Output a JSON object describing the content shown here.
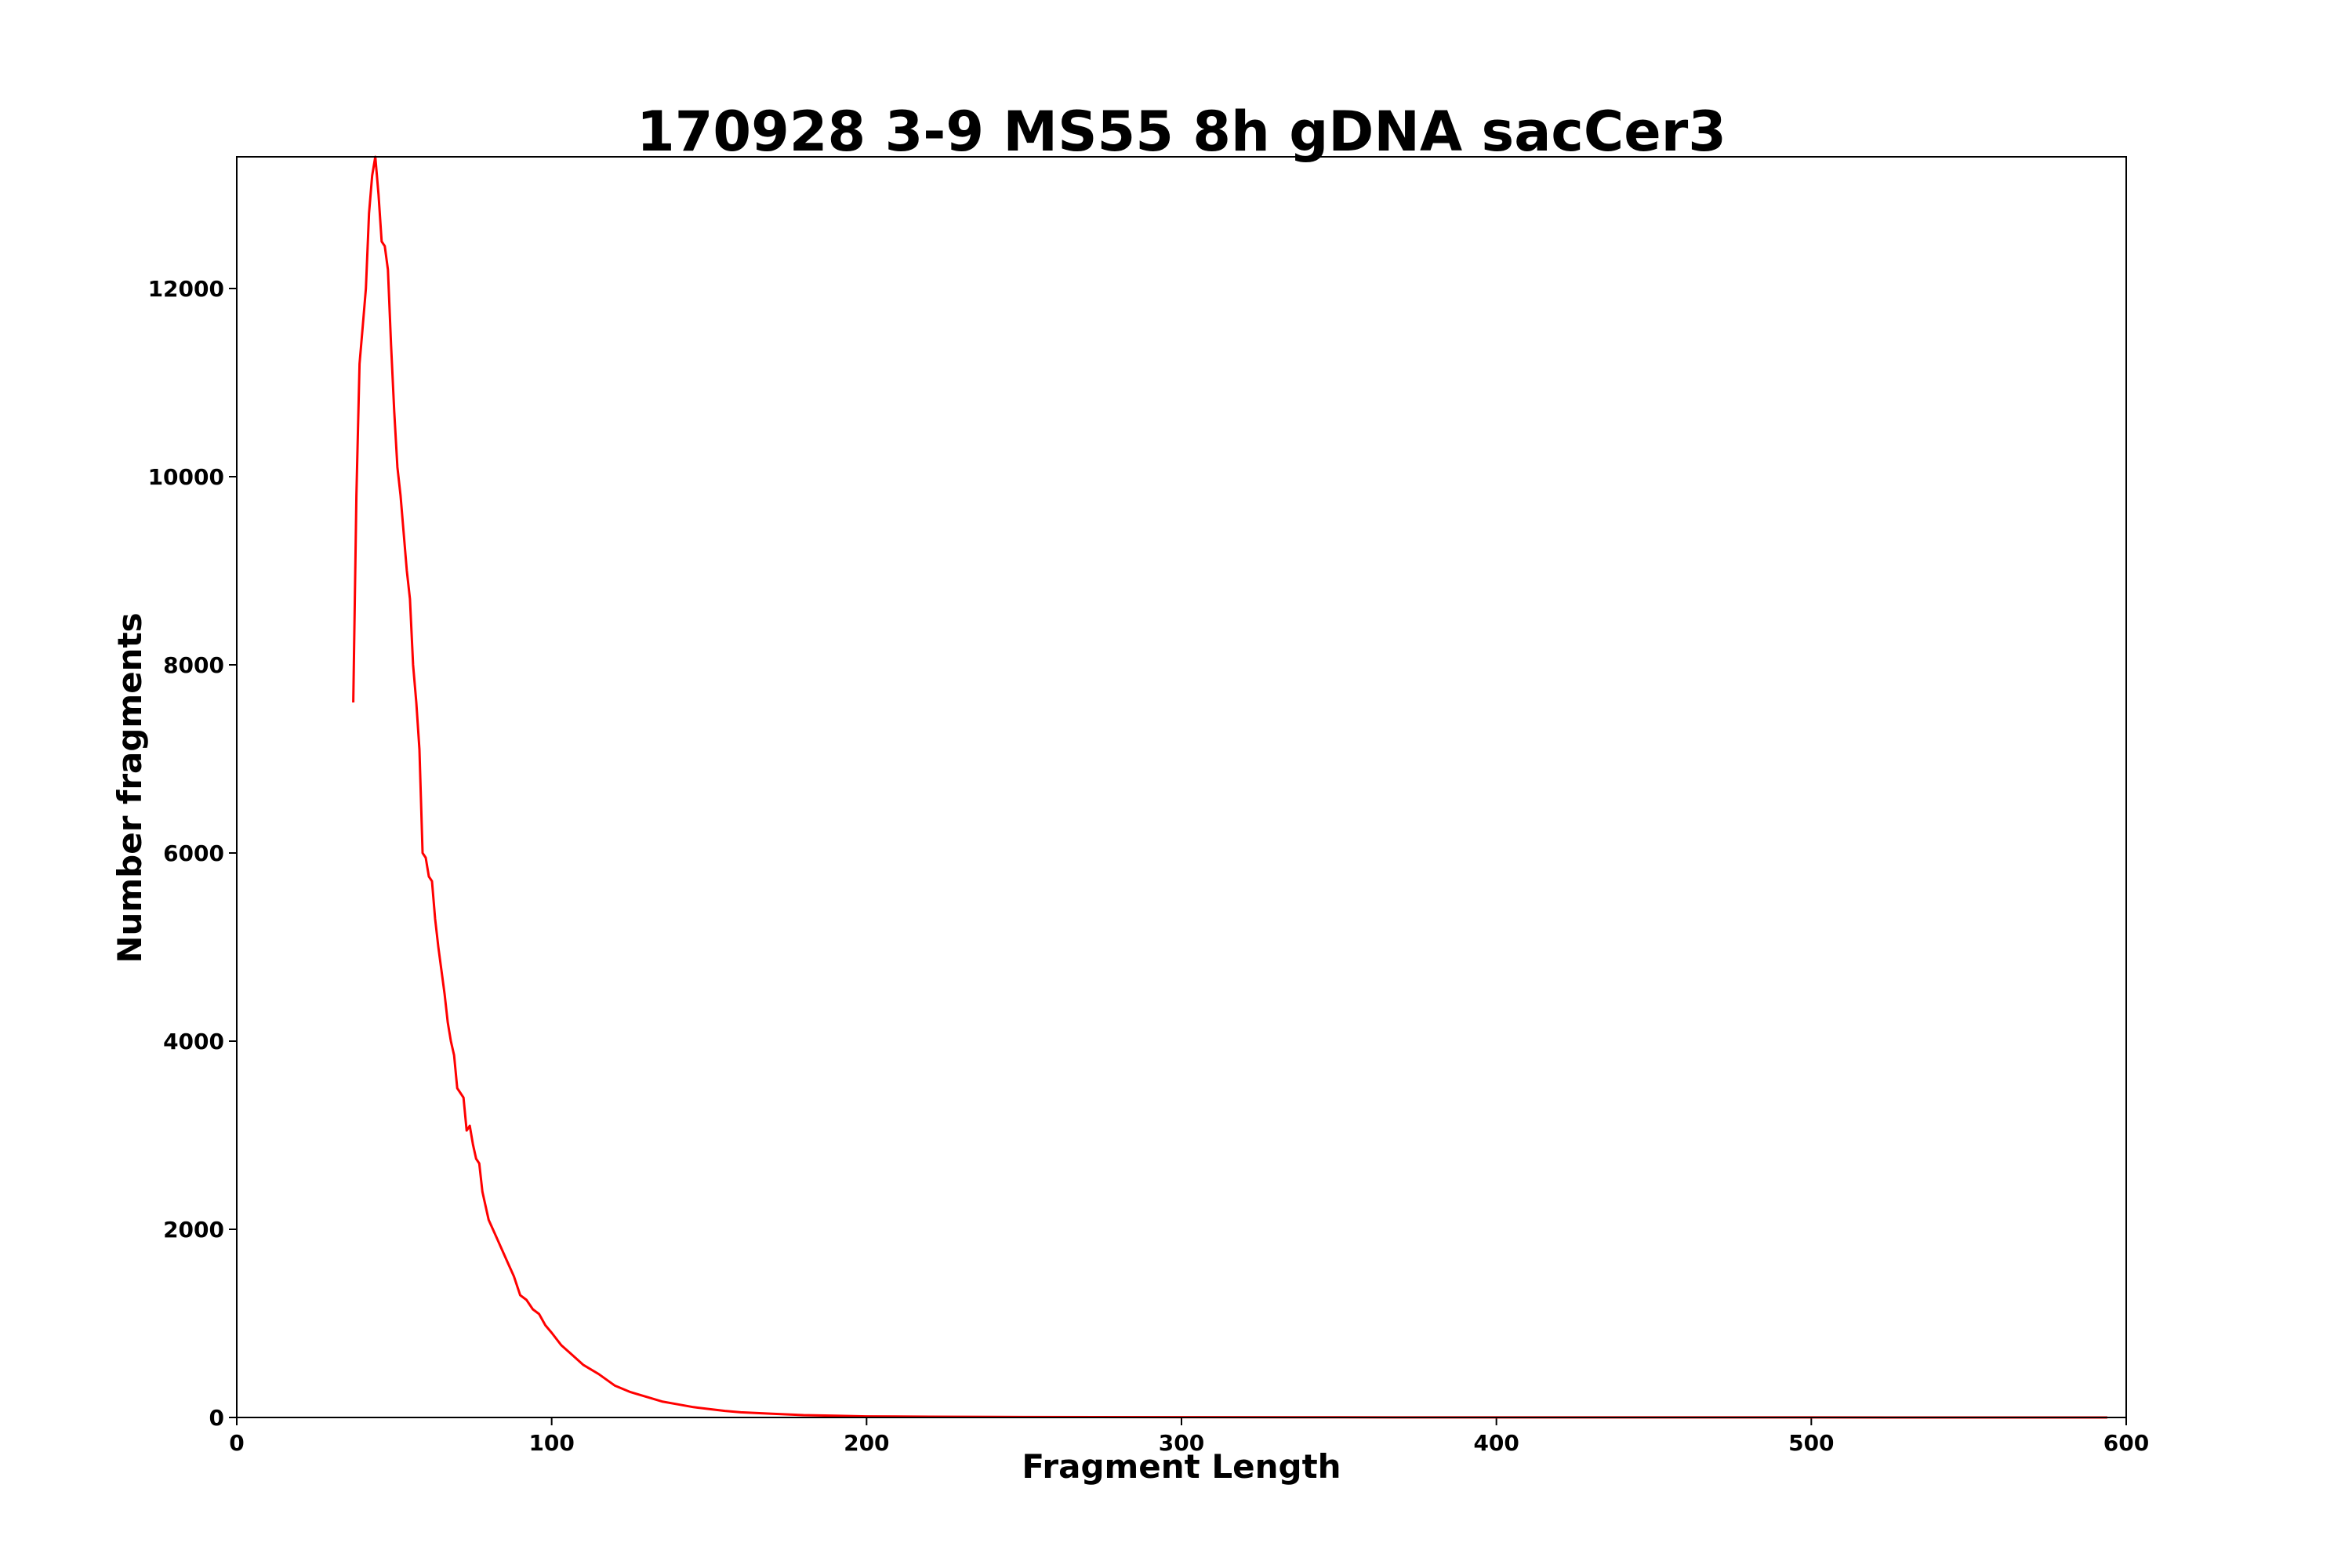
{
  "chart_data": {
    "type": "line",
    "title": "170928 3-9 MS55 8h gDNA sacCer3",
    "xlabel": "Fragment Length",
    "ylabel": "Number fragments",
    "xlim": [
      0,
      600
    ],
    "ylim": [
      0,
      13400
    ],
    "xticks": [
      0,
      100,
      200,
      300,
      400,
      500,
      600
    ],
    "yticks": [
      0,
      2000,
      4000,
      6000,
      8000,
      10000,
      12000
    ],
    "grid": false,
    "legend": "none",
    "line_color": "#ff0000",
    "series": [
      {
        "x": [
          37,
          38,
          39,
          40,
          41,
          42,
          43,
          44,
          45,
          46,
          47,
          48,
          49,
          50,
          51,
          52,
          53,
          54,
          55,
          56,
          57,
          58,
          59,
          60,
          61,
          62,
          63,
          64,
          65,
          66,
          67,
          68,
          69,
          70,
          71,
          72,
          73,
          74,
          75,
          76,
          77,
          78,
          79,
          80,
          82,
          84,
          86,
          88,
          90,
          92,
          94,
          96,
          98,
          100,
          103,
          106,
          110,
          115,
          120,
          125,
          130,
          135,
          140,
          145,
          150,
          155,
          160,
          170,
          180,
          190,
          200,
          220,
          250,
          300,
          350,
          400,
          450,
          500,
          550,
          594
        ],
        "y": [
          7600,
          9800,
          11200,
          11600,
          12000,
          12800,
          13200,
          13400,
          13000,
          12500,
          12450,
          12200,
          11400,
          10700,
          10100,
          9800,
          9400,
          9000,
          8700,
          8000,
          7600,
          7100,
          6000,
          5950,
          5750,
          5700,
          5300,
          5000,
          4750,
          4500,
          4200,
          4000,
          3850,
          3500,
          3450,
          3400,
          3050,
          3100,
          2900,
          2750,
          2700,
          2400,
          2250,
          2100,
          1950,
          1800,
          1650,
          1500,
          1300,
          1250,
          1150,
          1100,
          980,
          900,
          770,
          680,
          560,
          460,
          340,
          270,
          220,
          170,
          140,
          110,
          90,
          70,
          55,
          40,
          25,
          18,
          12,
          8,
          5,
          3,
          2,
          1,
          1,
          1,
          0,
          0
        ]
      }
    ]
  }
}
